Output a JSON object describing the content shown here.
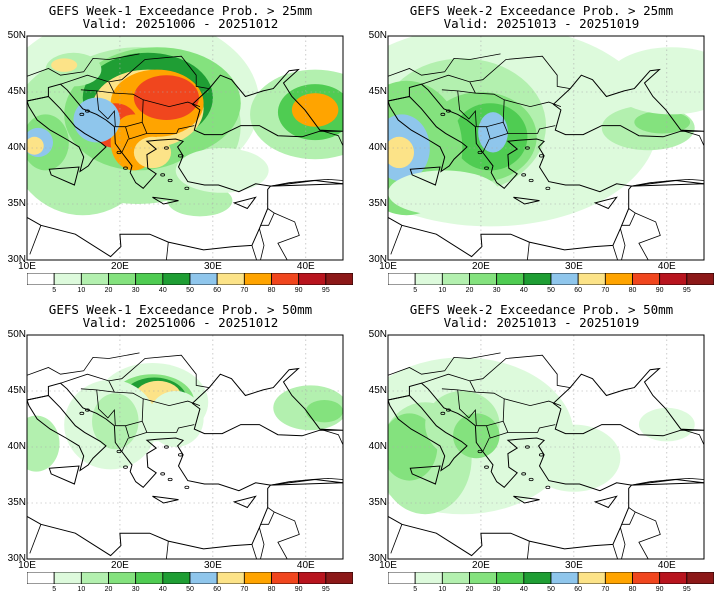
{
  "panels": [
    {
      "title": "GEFS Week-1 Exceedance Prob. > 25mm",
      "valid": "Valid: 20251006 - 20251012",
      "pattern": "w1_25"
    },
    {
      "title": "GEFS Week-2 Exceedance Prob. > 25mm",
      "valid": "Valid: 20251013 - 20251019",
      "pattern": "w2_25"
    },
    {
      "title": "GEFS Week-1 Exceedance Prob. > 50mm",
      "valid": "Valid: 20251006 - 20251012",
      "pattern": "w1_50"
    },
    {
      "title": "GEFS Week-2 Exceedance Prob. > 50mm",
      "valid": "Valid: 20251013 - 20251019",
      "pattern": "w2_50"
    }
  ],
  "map_extent": {
    "lon_min": 10,
    "lon_max": 44,
    "lat_min": 30,
    "lat_max": 50
  },
  "lat_labels": [
    "50N",
    "45N",
    "40N",
    "35N",
    "30N"
  ],
  "lon_labels": [
    "10E",
    "20E",
    "30E",
    "40E"
  ],
  "colorbar": {
    "labels": [
      "5",
      "10",
      "20",
      "30",
      "40",
      "50",
      "60",
      "70",
      "80",
      "90",
      "95"
    ],
    "colors": [
      "#ffffff",
      "#ddfadc",
      "#b3f0af",
      "#84e27e",
      "#4fcc52",
      "#1f9e34",
      "#8fc6ec",
      "#fce388",
      "#ffa400",
      "#f0461e",
      "#b8141e",
      "#8c1818"
    ]
  }
}
